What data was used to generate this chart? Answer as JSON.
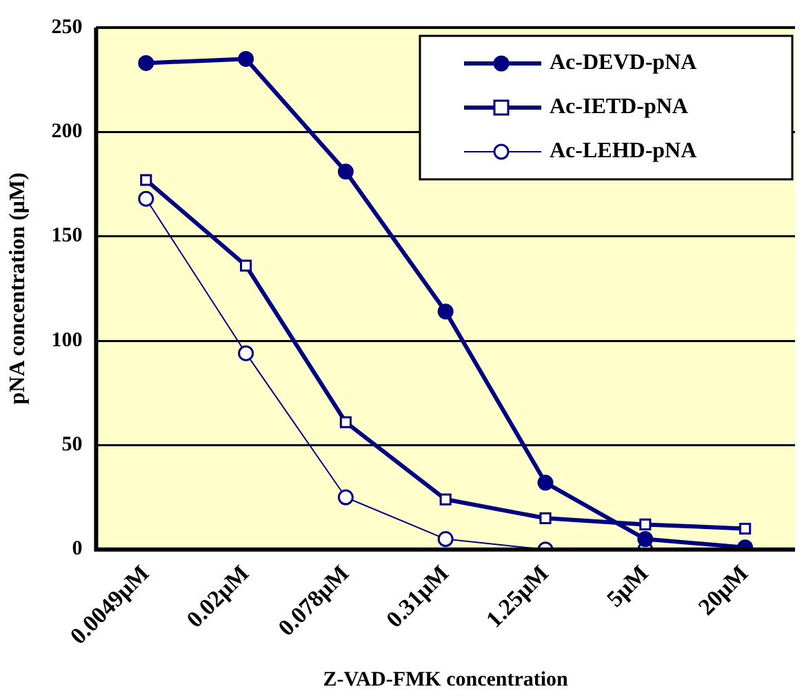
{
  "chart_data": {
    "type": "line",
    "xlabel": "Z-VAD-FMK concentration",
    "ylabel": "pNA concentration (μM)",
    "categories": [
      "0.0049μM",
      "0.02μM",
      "0.078μM",
      "0.31μM",
      "1.25μM",
      "5μM",
      "20μM"
    ],
    "series": [
      {
        "name": "Ac-DEVD-pNA",
        "color": "#000080",
        "marker": "circle",
        "values": [
          233,
          235,
          181,
          114,
          32,
          5,
          1
        ]
      },
      {
        "name": "Ac-IETD-pNA",
        "color": "#000080",
        "marker": "square",
        "values": [
          177,
          136,
          61,
          24,
          15,
          12,
          10
        ]
      },
      {
        "name": "Ac-LEHD-pNA",
        "color": "#000080",
        "marker": "circle",
        "values": [
          168,
          94,
          25,
          5,
          0,
          0,
          0
        ]
      }
    ],
    "ylim": [
      0,
      250
    ],
    "yticks": [
      0,
      50,
      100,
      150,
      200,
      250
    ],
    "grid": "y",
    "legend": "top right"
  }
}
